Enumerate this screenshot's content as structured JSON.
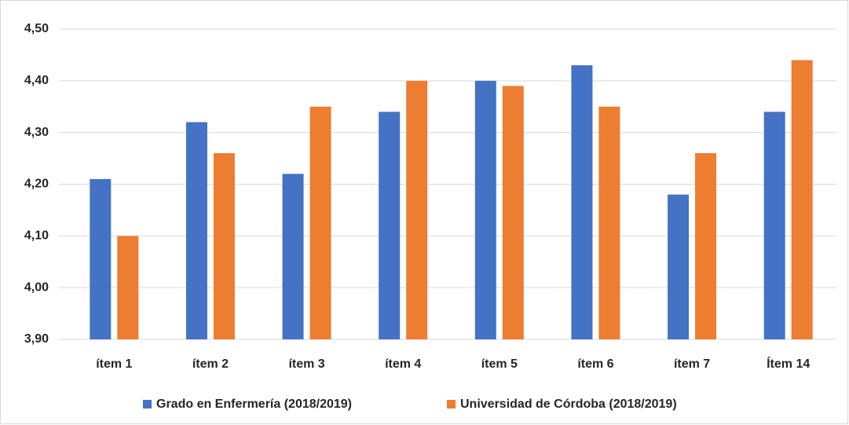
{
  "chart_data": {
    "type": "bar",
    "categories": [
      "ítem 1",
      "ítem 2",
      "ítem 3",
      "ítem 4",
      "ítem 5",
      "ítem 6",
      "ítem 7",
      "Ítem 14"
    ],
    "series": [
      {
        "name": "Grado en Enfermería (2018/2019)",
        "color": "#4472c4",
        "values": [
          4.21,
          4.32,
          4.22,
          4.34,
          4.4,
          4.43,
          4.18,
          4.34
        ]
      },
      {
        "name": "Universidad de Córdoba (2018/2019)",
        "color": "#ed7d31",
        "values": [
          4.1,
          4.26,
          4.35,
          4.4,
          4.39,
          4.35,
          4.26,
          4.44
        ]
      }
    ],
    "ylim": [
      3.9,
      4.5
    ],
    "yticks": [
      {
        "value": 3.9,
        "label": "3,90"
      },
      {
        "value": 4.0,
        "label": "4,00"
      },
      {
        "value": 4.1,
        "label": "4,10"
      },
      {
        "value": 4.2,
        "label": "4,20"
      },
      {
        "value": 4.3,
        "label": "4,30"
      },
      {
        "value": 4.4,
        "label": "4,40"
      },
      {
        "value": 4.5,
        "label": "4,50"
      }
    ],
    "grid": true,
    "legend": "bottom"
  }
}
